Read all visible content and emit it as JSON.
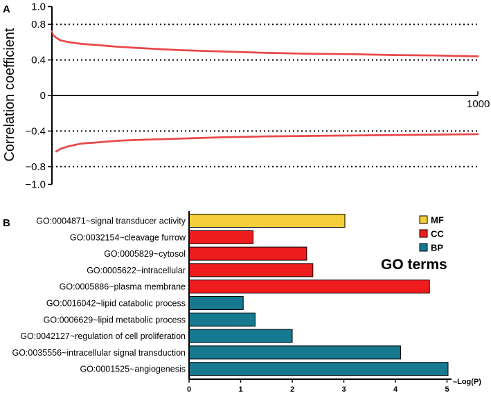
{
  "chart_data": [
    {
      "panel": "A",
      "type": "scatter",
      "title": "",
      "xlabel": "",
      "ylabel": "Correlation coefficient",
      "xlim": [
        0,
        1000
      ],
      "ylim": [
        -1.0,
        1.0
      ],
      "x_tick_labels": [
        "1000"
      ],
      "y_ticks": [
        1.0,
        0.8,
        0.4,
        0,
        -0.4,
        -0.8,
        -1.0
      ],
      "y_tick_labels": [
        "1.0",
        "0.8",
        "0.4",
        "0",
        "−0.4",
        "−0.8",
        "−1.0"
      ],
      "reference_lines": [
        0.8,
        0.4,
        -0.4,
        -0.8
      ],
      "reference_line_style": "dotted",
      "grid": false,
      "point_color": "#e8494a",
      "series": [
        {
          "x": [
            0,
            2,
            5,
            10,
            20,
            40,
            70,
            100,
            150,
            200,
            300,
            400,
            500,
            600,
            700,
            800,
            900,
            1000
          ],
          "values": [
            0.72,
            0.69,
            0.67,
            0.65,
            0.62,
            0.6,
            0.58,
            0.57,
            0.55,
            0.535,
            0.51,
            0.495,
            0.48,
            0.47,
            0.465,
            0.455,
            0.45,
            0.44
          ]
        },
        {
          "x": [
            10,
            15,
            20,
            30,
            40,
            55,
            70,
            100,
            150,
            200,
            300,
            400,
            500,
            600,
            700,
            800,
            900,
            1000
          ],
          "values": [
            -0.63,
            -0.615,
            -0.6,
            -0.585,
            -0.57,
            -0.555,
            -0.54,
            -0.53,
            -0.51,
            -0.5,
            -0.485,
            -0.47,
            -0.46,
            -0.455,
            -0.45,
            -0.445,
            -0.44,
            -0.435
          ]
        }
      ]
    },
    {
      "panel": "B",
      "type": "bar",
      "orientation": "horizontal",
      "title": "",
      "xlabel": "–Log(P)",
      "ylabel": "",
      "xlim": [
        0,
        5
      ],
      "x_ticks": [
        0,
        1,
        2,
        3,
        4,
        5
      ],
      "x_tick_labels": [
        "0",
        "1",
        "2",
        "3",
        "4",
        "5"
      ],
      "categories": [
        "GO:0004871~signal transducer activity",
        "GO:0032154~cleavage furrow",
        "GO:0005829~cytosol",
        "GO:0005622~intracellular",
        "GO:0005886~plasma membrane",
        "GO:0016042~lipid catabolic process",
        "GO:0006629~lipid metabolic process",
        "GO:0042127~regulation of cell proliferation",
        "GO:0035556~intracellular signal transduction",
        "GO:0001525~angiogenesis"
      ],
      "values": [
        3.02,
        1.24,
        2.28,
        2.4,
        4.66,
        1.05,
        1.28,
        2.0,
        4.1,
        5.02
      ],
      "groups": [
        "MF",
        "CC",
        "CC",
        "CC",
        "CC",
        "BP",
        "BP",
        "BP",
        "BP",
        "BP"
      ],
      "legend": {
        "title": "GO terms",
        "placement": "right",
        "entries": [
          {
            "label": "MF",
            "color": "#f5cf3a"
          },
          {
            "label": "CC",
            "color": "#ee1c1c"
          },
          {
            "label": "BP",
            "color": "#16798f"
          }
        ]
      }
    }
  ]
}
